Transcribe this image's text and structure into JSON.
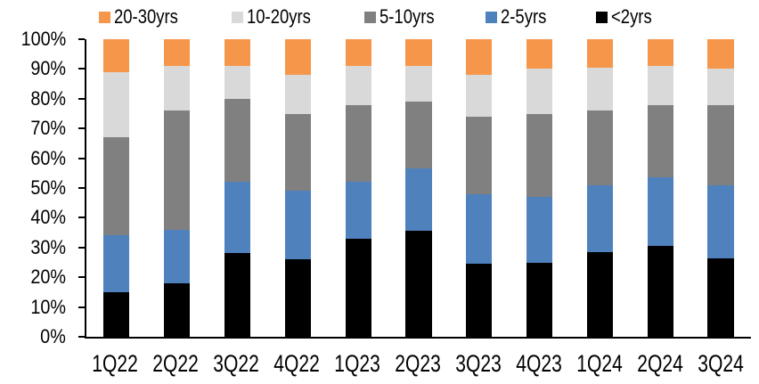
{
  "chart_data": {
    "type": "bar",
    "subtype": "stacked-100-percent",
    "title": "",
    "xlabel": "",
    "ylabel": "",
    "categories": [
      "1Q22",
      "2Q22",
      "3Q22",
      "4Q22",
      "1Q23",
      "2Q23",
      "3Q23",
      "4Q23",
      "1Q24",
      "2Q24",
      "3Q24"
    ],
    "series": [
      {
        "name": "<2yrs",
        "color": "#000000",
        "values": [
          15,
          18,
          28,
          26,
          33,
          35.5,
          24.5,
          25,
          28.5,
          30.5,
          26.5
        ]
      },
      {
        "name": "2-5yrs",
        "color": "#4F81BD",
        "values": [
          19,
          18,
          24,
          23,
          19,
          21,
          23.5,
          22,
          22.5,
          23,
          24.5
        ]
      },
      {
        "name": "5-10yrs",
        "color": "#808080",
        "values": [
          33,
          40,
          28,
          26,
          26,
          22.5,
          26,
          28,
          25,
          24.5,
          27
        ]
      },
      {
        "name": "10-20yrs",
        "color": "#D9D9D9",
        "values": [
          22,
          15,
          11,
          13,
          13,
          12,
          14,
          15,
          14.5,
          13,
          12
        ]
      },
      {
        "name": "20-30yrs",
        "color": "#F6964A",
        "values": [
          11,
          9,
          9,
          12,
          9,
          9,
          12,
          10,
          9.5,
          9,
          10
        ]
      }
    ],
    "legend": {
      "position": "top",
      "order": [
        "20-30yrs",
        "10-20yrs",
        "5-10yrs",
        "2-5yrs",
        "<2yrs"
      ]
    },
    "y_axis": {
      "min": 0,
      "max": 100,
      "tick_step": 10,
      "tick_labels_bottom_up": [
        "0%",
        "10%",
        "20%",
        "30%",
        "40%",
        "50%",
        "60%",
        "70%",
        "80%",
        "90%",
        "100%"
      ],
      "grid": false,
      "axis_color": "#000000"
    }
  }
}
